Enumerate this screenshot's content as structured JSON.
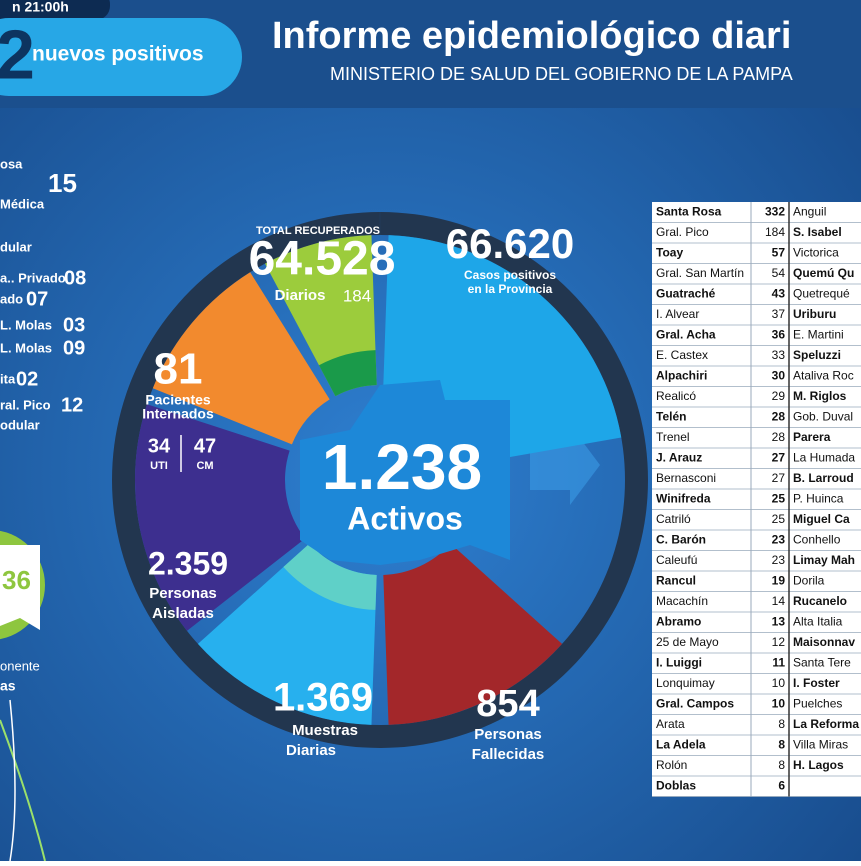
{
  "header": {
    "time": "n 21:00h",
    "new_count": "2",
    "new_label": "nuevos positivos",
    "title": "Informe epidemiológico diari",
    "subtitle": "MINISTERIO DE SALUD DEL GOBIERNO DE LA PAMPA"
  },
  "left_list": {
    "items": [
      {
        "label": "osa",
        "value": ""
      },
      {
        "label": "",
        "value": "15"
      },
      {
        "label": "Médica",
        "value": ""
      },
      {
        "label": "dular",
        "value": ""
      },
      {
        "label": "a.. Privado",
        "value": "08"
      },
      {
        "label": "ado",
        "value": "07"
      },
      {
        "label": "L. Molas",
        "value": "03"
      },
      {
        "label": "L. Molas",
        "value": "09"
      },
      {
        "label": "ita",
        "value": "02"
      },
      {
        "label": "ral. Pico",
        "value": "12"
      },
      {
        "label": "odular",
        "value": ""
      }
    ],
    "circle_value": "36",
    "circle_caption": "onente",
    "circle_caption2": "as"
  },
  "segments": {
    "recuperados": {
      "heading": "TOTAL RECUPERADOS",
      "value": "64.528",
      "daily_label": "Diarios",
      "daily_value": "184"
    },
    "positivos": {
      "value": "66.620",
      "line1": "Casos positivos",
      "line2": "en la Provincia"
    },
    "internados": {
      "value": "81",
      "line1": "Pacientes",
      "line2": "Internados",
      "uti_value": "34",
      "uti_label": "UTI",
      "cm_value": "47",
      "cm_label": "CM"
    },
    "activos": {
      "value": "1.238",
      "label": "Activos"
    },
    "aisladas": {
      "value": "2.359",
      "line1": "Personas",
      "line2": "Aisladas"
    },
    "muestras": {
      "value": "1.369",
      "line1": "Muestras",
      "line2": "Diarias"
    },
    "fallecidas": {
      "value": "854",
      "line1": "Personas",
      "line2": "Fallecidas"
    }
  },
  "table": {
    "left": [
      [
        "Santa Rosa",
        "332"
      ],
      [
        "Gral. Pico",
        "184"
      ],
      [
        "Toay",
        "57"
      ],
      [
        "Gral. San Martín",
        "54"
      ],
      [
        "Guatraché",
        "43"
      ],
      [
        "I. Alvear",
        "37"
      ],
      [
        "Gral. Acha",
        "36"
      ],
      [
        "E. Castex",
        "33"
      ],
      [
        "Alpachiri",
        "30"
      ],
      [
        "Realicó",
        "29"
      ],
      [
        "Telén",
        "28"
      ],
      [
        "Trenel",
        "28"
      ],
      [
        "J. Arauz",
        "27"
      ],
      [
        "Bernasconi",
        "27"
      ],
      [
        "Winifreda",
        "25"
      ],
      [
        "Catriló",
        "25"
      ],
      [
        "C. Barón",
        "23"
      ],
      [
        "Caleufú",
        "23"
      ],
      [
        "Rancul",
        "19"
      ],
      [
        "Macachín",
        "14"
      ],
      [
        "Abramo",
        "13"
      ],
      [
        "25 de Mayo",
        "12"
      ],
      [
        "I. Luiggi",
        "11"
      ],
      [
        "Lonquimay",
        "10"
      ],
      [
        "Gral. Campos",
        "10"
      ],
      [
        "Arata",
        "8"
      ],
      [
        "La Adela",
        "8"
      ],
      [
        "Rolón",
        "8"
      ],
      [
        "Doblas",
        "6"
      ]
    ],
    "right": [
      "Anguil",
      "S. Isabel",
      "Victorica",
      "Quemú Qu",
      "Quetrequé",
      "Uriburu",
      "E. Martini",
      "Speluzzi",
      "Ataliva Roc",
      "M. Riglos",
      "Gob. Duval",
      "Parera",
      "La Humada",
      "B. Larroud",
      "P. Huinca",
      "Miguel Ca",
      "Conhello",
      "Limay Mah",
      "Dorila",
      "Rucanelo",
      "Alta Italia",
      "Maisonnav",
      "Santa Tere",
      "I. Foster",
      "Puelches",
      "La Reforma",
      "Villa Miras",
      "H. Lagos"
    ]
  }
}
